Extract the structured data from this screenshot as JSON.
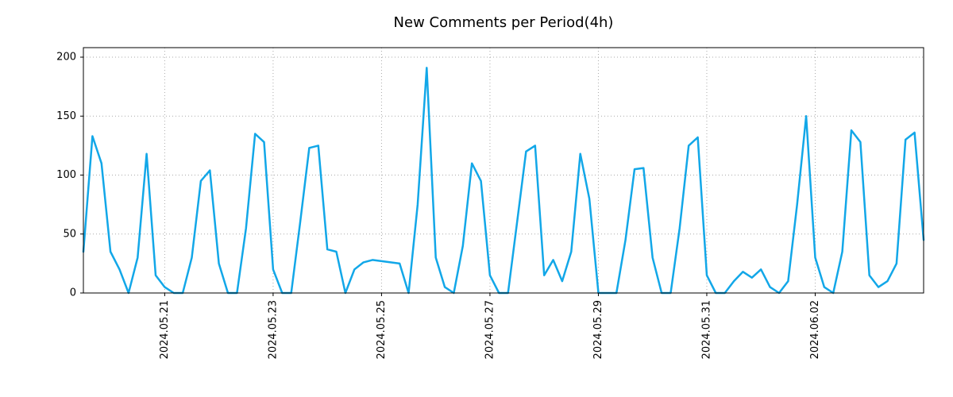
{
  "chart_data": {
    "type": "line",
    "title": "New Comments per Period(4h)",
    "period_hours": 4,
    "line_color": "#12a7e8",
    "grid": "dotted",
    "grid_color": "#aaaaaa",
    "legend": "none",
    "y_ticks": [
      0,
      50,
      100,
      150,
      200
    ],
    "ylim": [
      0,
      208
    ],
    "x_tick_labels": [
      "2024.05.21",
      "2024.05.23",
      "2024.05.25",
      "2024.05.27",
      "2024.05.29",
      "2024.05.31",
      "2024.06.02"
    ],
    "x_tick_indices": [
      9,
      21,
      33,
      45,
      57,
      69,
      81
    ],
    "values": [
      35,
      133,
      110,
      35,
      20,
      0,
      30,
      118,
      15,
      5,
      0,
      0,
      30,
      95,
      104,
      25,
      0,
      0,
      55,
      135,
      128,
      20,
      0,
      0,
      60,
      123,
      125,
      37,
      35,
      0,
      20,
      26,
      28,
      27,
      26,
      25,
      0,
      75,
      191,
      30,
      5,
      0,
      40,
      110,
      95,
      15,
      0,
      0,
      60,
      120,
      125,
      15,
      28,
      10,
      35,
      118,
      80,
      0,
      0,
      0,
      45,
      105,
      106,
      30,
      0,
      0,
      55,
      125,
      132,
      15,
      0,
      0,
      10,
      18,
      13,
      20,
      5,
      0,
      10,
      75,
      150,
      30,
      5,
      0,
      35,
      138,
      128,
      15,
      5,
      10,
      25,
      130,
      136,
      45
    ]
  }
}
